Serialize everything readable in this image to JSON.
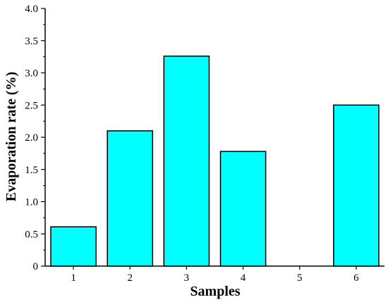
{
  "chart_data": {
    "type": "bar",
    "title": "",
    "xlabel": "Samples",
    "ylabel": "Evaporation rate (%)",
    "categories": [
      "1",
      "2",
      "3",
      "4",
      "5",
      "6"
    ],
    "values": [
      0.61,
      2.1,
      3.26,
      1.78,
      0,
      2.5
    ],
    "ylim": [
      0,
      4.0
    ],
    "yticks": [
      "0",
      "0.5",
      "1.0",
      "1.5",
      "2.0",
      "2.5",
      "3.0",
      "3.5",
      "4.0"
    ],
    "bar_color": "#00FFFF",
    "grid": false,
    "legend": "none"
  }
}
